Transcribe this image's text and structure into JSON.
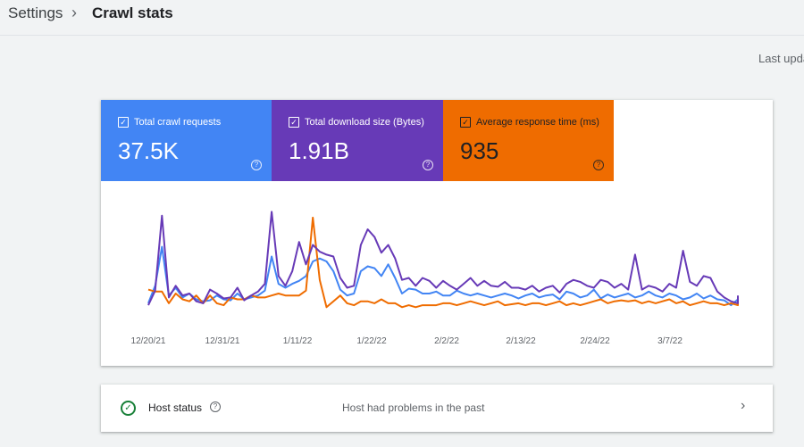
{
  "breadcrumb": {
    "root": "Settings",
    "separator": "›",
    "current": "Crawl stats"
  },
  "header": {
    "more_icon": "⋮",
    "last_updated": "Last upda"
  },
  "metrics": [
    {
      "label": "Total crawl requests",
      "value": "37.5K",
      "color": "#4285f4",
      "icon": "checkbox-icon"
    },
    {
      "label": "Total download size (Bytes)",
      "value": "1.91B",
      "color": "#673ab7",
      "icon": "checkbox-icon"
    },
    {
      "label": "Average response time (ms)",
      "value": "935",
      "color": "#ef6c00",
      "icon": "checkbox-icon"
    }
  ],
  "chart_data": {
    "type": "line",
    "x_tick_labels": [
      "12/20/21",
      "12/31/21",
      "1/11/22",
      "1/22/22",
      "2/2/22",
      "2/13/22",
      "2/24/22",
      "3/7/22"
    ],
    "x_range": [
      "12/20/21",
      "3/19/22"
    ],
    "grid": false,
    "legend": "none",
    "series": [
      {
        "name": "Total crawl requests",
        "color": "#4285f4",
        "values": [
          12,
          30,
          70,
          20,
          28,
          18,
          22,
          16,
          14,
          15,
          20,
          16,
          15,
          22,
          16,
          18,
          20,
          25,
          60,
          32,
          28,
          32,
          35,
          40,
          55,
          58,
          55,
          45,
          26,
          20,
          22,
          45,
          50,
          48,
          40,
          52,
          38,
          22,
          27,
          26,
          22,
          22,
          24,
          20,
          20,
          25,
          22,
          20,
          22,
          20,
          18,
          20,
          22,
          20,
          17,
          20,
          22,
          18,
          20,
          21,
          16,
          24,
          22,
          18,
          20,
          26,
          17,
          21,
          18,
          20,
          22,
          18,
          20,
          24,
          20,
          18,
          22,
          20,
          16,
          18,
          22,
          17,
          20,
          16,
          15,
          10,
          16
        ]
      },
      {
        "name": "Total download size (Bytes)",
        "color": "#673ab7",
        "values": [
          10,
          25,
          102,
          18,
          30,
          20,
          22,
          14,
          12,
          26,
          22,
          17,
          18,
          28,
          15,
          20,
          24,
          32,
          106,
          40,
          30,
          45,
          75,
          52,
          72,
          65,
          62,
          60,
          38,
          28,
          30,
          72,
          88,
          80,
          64,
          72,
          58,
          36,
          38,
          30,
          38,
          35,
          28,
          35,
          30,
          26,
          32,
          38,
          30,
          35,
          30,
          29,
          34,
          28,
          28,
          26,
          30,
          24,
          28,
          30,
          23,
          32,
          36,
          34,
          30,
          28,
          36,
          34,
          28,
          32,
          26,
          62,
          26,
          30,
          28,
          24,
          32,
          28,
          66,
          34,
          30,
          40,
          38,
          24,
          18,
          14,
          12,
          20
        ]
      },
      {
        "name": "Average response time (ms)",
        "color": "#ef6c00",
        "values": [
          26,
          24,
          24,
          12,
          22,
          16,
          14,
          20,
          12,
          20,
          12,
          10,
          18,
          16,
          16,
          20,
          18,
          18,
          20,
          22,
          20,
          20,
          20,
          25,
          100,
          36,
          8,
          14,
          20,
          12,
          10,
          14,
          14,
          12,
          16,
          12,
          12,
          8,
          10,
          8,
          10,
          10,
          10,
          12,
          12,
          10,
          12,
          14,
          12,
          10,
          12,
          14,
          10,
          11,
          12,
          10,
          12,
          12,
          10,
          12,
          14,
          10,
          12,
          10,
          12,
          14,
          16,
          12,
          14,
          15,
          14,
          15,
          12,
          14,
          12,
          14,
          16,
          12,
          14,
          10,
          12,
          14,
          12,
          12,
          10,
          12,
          10,
          12
        ]
      }
    ]
  },
  "host": {
    "icon": "check-circle-icon",
    "label": "Host status",
    "status": "Host had problems in the past",
    "chevron": "›"
  }
}
